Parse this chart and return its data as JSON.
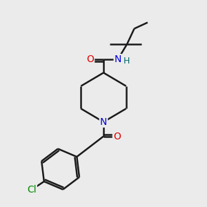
{
  "background_color": "#ebebeb",
  "bond_color": "#1a1a1a",
  "bond_width": 1.8,
  "atom_colors": {
    "N": "#0000e0",
    "O": "#e00000",
    "Cl": "#008800",
    "H": "#006666"
  },
  "font_size": 10
}
